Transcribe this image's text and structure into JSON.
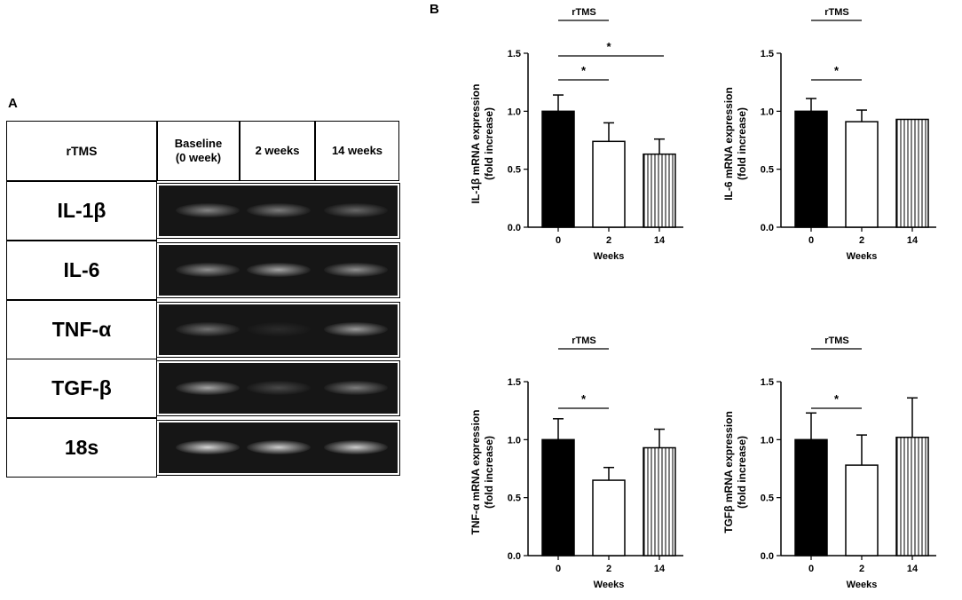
{
  "panel_a_label": "A",
  "panel_b_label": "B",
  "gel": {
    "corner_label": "rTMS",
    "columns": [
      "Baseline\n(0 week)",
      "2 weeks",
      "14 weeks"
    ],
    "rows": [
      {
        "name": "IL-1β",
        "intensity": [
          0.55,
          0.5,
          0.4
        ]
      },
      {
        "name": "IL-6",
        "intensity": [
          0.6,
          0.7,
          0.6
        ]
      },
      {
        "name": "TNF-α",
        "intensity": [
          0.45,
          0.1,
          0.65
        ]
      },
      {
        "name": "TGF-β",
        "intensity": [
          0.7,
          0.25,
          0.5
        ]
      },
      {
        "name": "18s",
        "intensity": [
          0.95,
          0.9,
          0.9
        ]
      }
    ]
  },
  "colors": {
    "bar_0": "#000000",
    "bar_2": "#ffffff",
    "bar_14_stripe": "#000000",
    "gel_bg": "#161616",
    "band": "#d8d8d8"
  },
  "chart_data": [
    {
      "type": "bar",
      "title": "rTMS",
      "categories": [
        "0",
        "2",
        "14"
      ],
      "values": [
        1.0,
        0.74,
        0.63
      ],
      "errors": [
        0.14,
        0.16,
        0.13
      ],
      "xlabel": "Weeks",
      "ylabel": "IL-1β mRNA expression\n(fold increase)",
      "ylim": [
        0,
        1.5
      ],
      "yticks": [
        "0.0",
        "0.5",
        "1.0",
        "1.5"
      ],
      "significance": [
        {
          "from": 0,
          "to": 1,
          "label": "*"
        },
        {
          "from": 0,
          "to": 2,
          "label": "*"
        }
      ]
    },
    {
      "type": "bar",
      "title": "rTMS",
      "categories": [
        "0",
        "2",
        "14"
      ],
      "values": [
        1.0,
        0.91,
        0.93
      ],
      "errors": [
        0.11,
        0.1,
        0.0
      ],
      "xlabel": "Weeks",
      "ylabel": "IL-6 mRNA expression\n(fold increase)",
      "ylim": [
        0,
        1.5
      ],
      "yticks": [
        "0.0",
        "0.5",
        "1.0",
        "1.5"
      ],
      "significance": [
        {
          "from": 0,
          "to": 1,
          "label": "*"
        }
      ]
    },
    {
      "type": "bar",
      "title": "rTMS",
      "categories": [
        "0",
        "2",
        "14"
      ],
      "values": [
        1.0,
        0.65,
        0.93
      ],
      "errors": [
        0.18,
        0.11,
        0.16
      ],
      "xlabel": "Weeks",
      "ylabel": "TNF-α mRNA expression\n(fold increase)",
      "ylim": [
        0,
        1.5
      ],
      "yticks": [
        "0.0",
        "0.5",
        "1.0",
        "1.5"
      ],
      "significance": [
        {
          "from": 0,
          "to": 1,
          "label": "*"
        }
      ]
    },
    {
      "type": "bar",
      "title": "rTMS",
      "categories": [
        "0",
        "2",
        "14"
      ],
      "values": [
        1.0,
        0.78,
        1.02
      ],
      "errors": [
        0.23,
        0.26,
        0.34
      ],
      "xlabel": "Weeks",
      "ylabel": "TGFβ mRNA expression\n(fold increase)",
      "ylim": [
        0,
        1.5
      ],
      "yticks": [
        "0.0",
        "0.5",
        "1.0",
        "1.5"
      ],
      "significance": [
        {
          "from": 0,
          "to": 1,
          "label": "*"
        }
      ]
    }
  ]
}
